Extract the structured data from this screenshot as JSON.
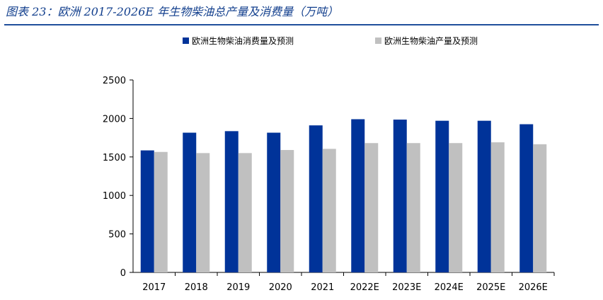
{
  "figure": {
    "title": "图表 23：欧洲 2017-2026E 年生物柴油总产量及消费量（万吨）"
  },
  "chart_data": {
    "type": "bar",
    "title": "",
    "xlabel": "",
    "ylabel": "",
    "ylim": [
      0,
      2500
    ],
    "yticks": [
      0,
      500,
      1000,
      1500,
      2000,
      2500
    ],
    "grid": false,
    "legend_position": "top",
    "categories": [
      "2017",
      "2018",
      "2019",
      "2020",
      "2021",
      "2022E",
      "2023E",
      "2024E",
      "2025E",
      "2026E"
    ],
    "series": [
      {
        "name": "欧洲生物柴油消费量及预测",
        "color": "#003399",
        "values": [
          1585,
          1815,
          1835,
          1815,
          1910,
          1990,
          1985,
          1970,
          1970,
          1925
        ]
      },
      {
        "name": "欧洲生物柴油产量及预测",
        "color": "#c0c0c0",
        "values": [
          1565,
          1550,
          1550,
          1590,
          1605,
          1680,
          1680,
          1680,
          1690,
          1665
        ]
      }
    ]
  }
}
